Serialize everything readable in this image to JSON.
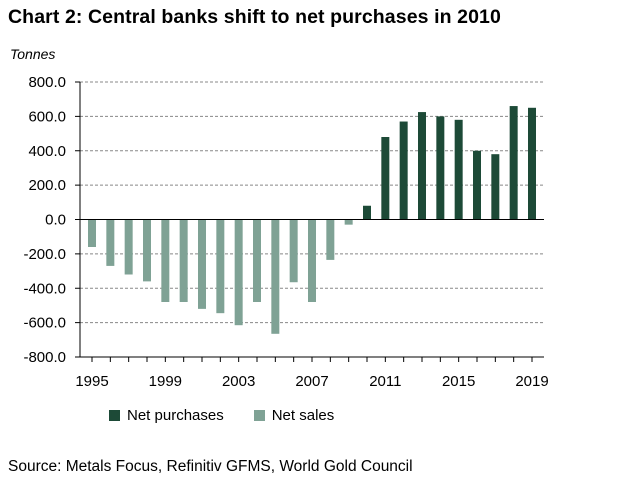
{
  "title": "Chart 2: Central banks shift to net purchases in 2010",
  "source": "Source: Metals Focus, Refinitiv GFMS, World Gold Council",
  "colors": {
    "purchases": "#1d4a37",
    "sales": "#7fa295",
    "grid": "#888888",
    "axis": "#000000"
  },
  "chart_data": {
    "type": "bar",
    "title": "Chart 2: Central banks shift to net purchases in 2010",
    "ylabel": "Tonnes",
    "xlabel": "",
    "ylim": [
      -800,
      800
    ],
    "yticks": [
      "800.0",
      "600.0",
      "400.0",
      "200.0",
      "0.0",
      "-200.0",
      "-400.0",
      "-600.0",
      "-800.0"
    ],
    "ytick_values": [
      800,
      600,
      400,
      200,
      0,
      -200,
      -400,
      -600,
      -800
    ],
    "xtick_labels": [
      "1995",
      "1999",
      "2003",
      "2007",
      "2011",
      "2015",
      "2019"
    ],
    "categories": [
      1995,
      1996,
      1997,
      1998,
      1999,
      2000,
      2001,
      2002,
      2003,
      2004,
      2005,
      2006,
      2007,
      2008,
      2009,
      2010,
      2011,
      2012,
      2013,
      2014,
      2015,
      2016,
      2017,
      2018,
      2019
    ],
    "values": [
      -160,
      -270,
      -320,
      -360,
      -480,
      -480,
      -520,
      -545,
      -615,
      -480,
      -665,
      -365,
      -480,
      -235,
      -30,
      80,
      480,
      570,
      625,
      600,
      580,
      400,
      380,
      660,
      650
    ],
    "legend": [
      "Net purchases",
      "Net sales"
    ],
    "legend_position": "bottom",
    "grid": true
  }
}
